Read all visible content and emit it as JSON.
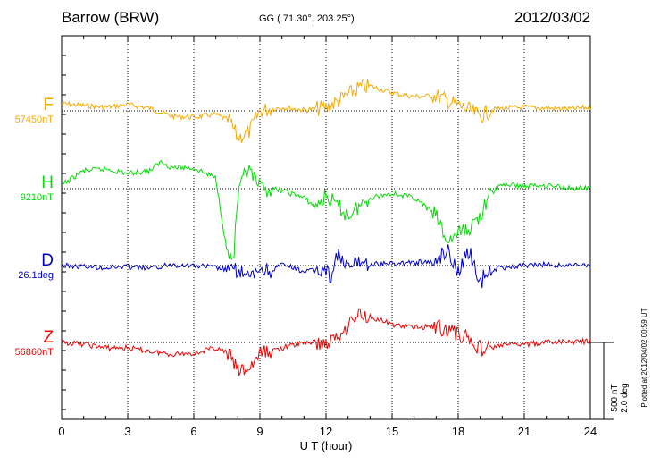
{
  "header": {
    "station": "Barrow (BRW)",
    "coords": "GG ( 71.30°, 203.25°)",
    "date": "2012/03/02"
  },
  "footer": {
    "plotted": "Plotted at 2012/04/02 00:59 UT",
    "scale_nt": "500 nT",
    "scale_deg": "2.0 deg"
  },
  "chart_data": {
    "type": "line",
    "xlabel": "U T (hour)",
    "xlim": [
      0,
      24
    ],
    "xticks": [
      "0",
      "3",
      "6",
      "9",
      "12",
      "15",
      "18",
      "21",
      "24"
    ],
    "grid": true,
    "scale_bar": "500 nT / 2.0 deg",
    "series": [
      {
        "name": "F",
        "baseline_label": "57450nT",
        "color": "#f5a800",
        "x": [
          0,
          1,
          2,
          3,
          4,
          5,
          6,
          7,
          7.6,
          8,
          8.5,
          9,
          10,
          11,
          11.5,
          12,
          12.5,
          13,
          13.5,
          14,
          15,
          16,
          17,
          18,
          18.5,
          19,
          19.5,
          20,
          21,
          22,
          23,
          24
        ],
        "y": [
          80,
          60,
          40,
          70,
          30,
          -60,
          -70,
          -40,
          -110,
          -300,
          -240,
          0,
          40,
          10,
          20,
          40,
          100,
          180,
          260,
          280,
          200,
          160,
          170,
          60,
          10,
          -60,
          10,
          30,
          40,
          30,
          20,
          40
        ]
      },
      {
        "name": "H",
        "baseline_label": "9210nT",
        "color": "#00dd00",
        "x": [
          0,
          1,
          2,
          3,
          4,
          4.5,
          5,
          6,
          7,
          7.5,
          7.8,
          8,
          8.3,
          8.5,
          9,
          10,
          11,
          11.5,
          12,
          13,
          14,
          15,
          16,
          17,
          17.5,
          18,
          18.5,
          19,
          19.5,
          20,
          21,
          22,
          23,
          24
        ],
        "y": [
          40,
          200,
          220,
          170,
          200,
          300,
          240,
          230,
          120,
          -700,
          -800,
          -100,
          150,
          200,
          0,
          -20,
          -100,
          -200,
          -80,
          -300,
          -100,
          -50,
          -100,
          -300,
          -600,
          -500,
          -450,
          -300,
          -50,
          50,
          30,
          40,
          10,
          0
        ]
      },
      {
        "name": "D",
        "baseline_label": "26.1deg",
        "color": "#0000cc",
        "x": [
          0,
          1,
          2,
          3,
          4,
          5,
          6,
          7,
          7.8,
          8,
          8.5,
          9,
          9.5,
          10,
          11,
          12,
          12.2,
          12.5,
          13,
          13.5,
          14,
          15,
          16,
          17,
          17.5,
          18,
          18.5,
          19,
          19.2,
          20,
          21,
          22,
          23,
          24
        ],
        "y": [
          0,
          -0.05,
          -0.1,
          -0.05,
          -0.15,
          0.05,
          0,
          -0.1,
          -0.3,
          -0.2,
          -0.7,
          -0.15,
          -0.3,
          0.05,
          -0.3,
          -0.2,
          -0.6,
          0.6,
          -0.2,
          0.25,
          0.05,
          0.1,
          0.15,
          0.2,
          0.9,
          -0.3,
          0.8,
          -1.1,
          -0.3,
          -0.1,
          0,
          0.05,
          0,
          0.05
        ]
      },
      {
        "name": "Z",
        "baseline_label": "56860nT",
        "color": "#ee0000",
        "x": [
          0,
          1,
          2,
          3,
          4,
          5,
          6,
          7,
          7.6,
          8,
          8.5,
          9,
          10,
          11,
          11.5,
          12,
          12.5,
          13,
          13.5,
          14,
          15,
          16,
          17,
          18,
          18.5,
          19,
          19.5,
          20,
          21,
          22,
          23,
          24
        ],
        "y": [
          0,
          -20,
          -60,
          -60,
          -100,
          -130,
          -120,
          -60,
          -130,
          -320,
          -300,
          -130,
          -60,
          0,
          0,
          -20,
          60,
          200,
          320,
          290,
          200,
          170,
          180,
          100,
          40,
          -70,
          -60,
          -30,
          -20,
          0,
          10,
          10
        ]
      }
    ]
  }
}
